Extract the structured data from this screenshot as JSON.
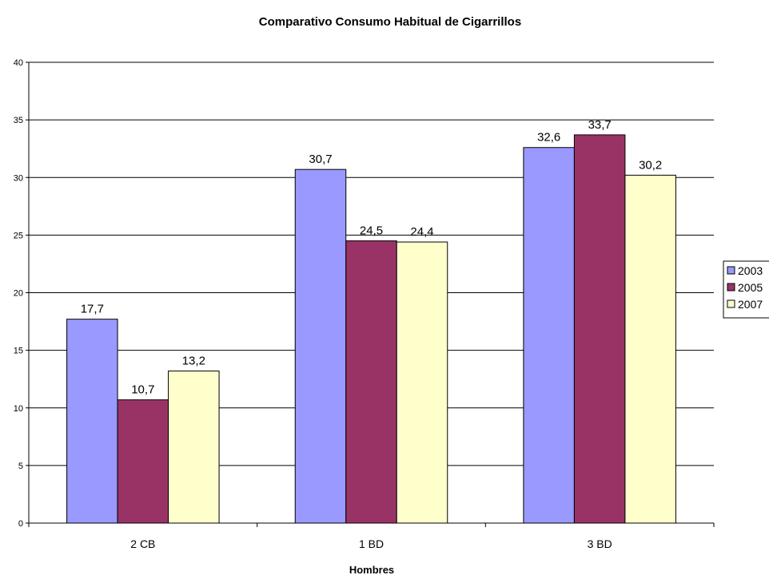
{
  "chart_data": {
    "type": "bar",
    "title": "Comparativo Consumo Habitual de Cigarrillos",
    "xlabel": "Hombres",
    "ylabel": "",
    "categories": [
      "2 CB",
      "1 BD",
      "3 BD"
    ],
    "series": [
      {
        "name": "2003",
        "values": [
          17.7,
          30.7,
          32.6
        ],
        "labels": [
          "17,7",
          "30,7",
          "32,6"
        ],
        "color": "#9999ff"
      },
      {
        "name": "2005",
        "values": [
          10.7,
          24.5,
          33.7
        ],
        "labels": [
          "10,7",
          "24,5",
          "33,7"
        ],
        "color": "#993366"
      },
      {
        "name": "2007",
        "values": [
          13.2,
          24.4,
          30.2
        ],
        "labels": [
          "13,2",
          "24,4",
          "30,2"
        ],
        "color": "#ffffcc"
      }
    ],
    "ylim": [
      0,
      40
    ],
    "yticks": [
      0,
      5,
      10,
      15,
      20,
      25,
      30,
      35,
      40
    ],
    "grid": true,
    "legend": "right"
  }
}
